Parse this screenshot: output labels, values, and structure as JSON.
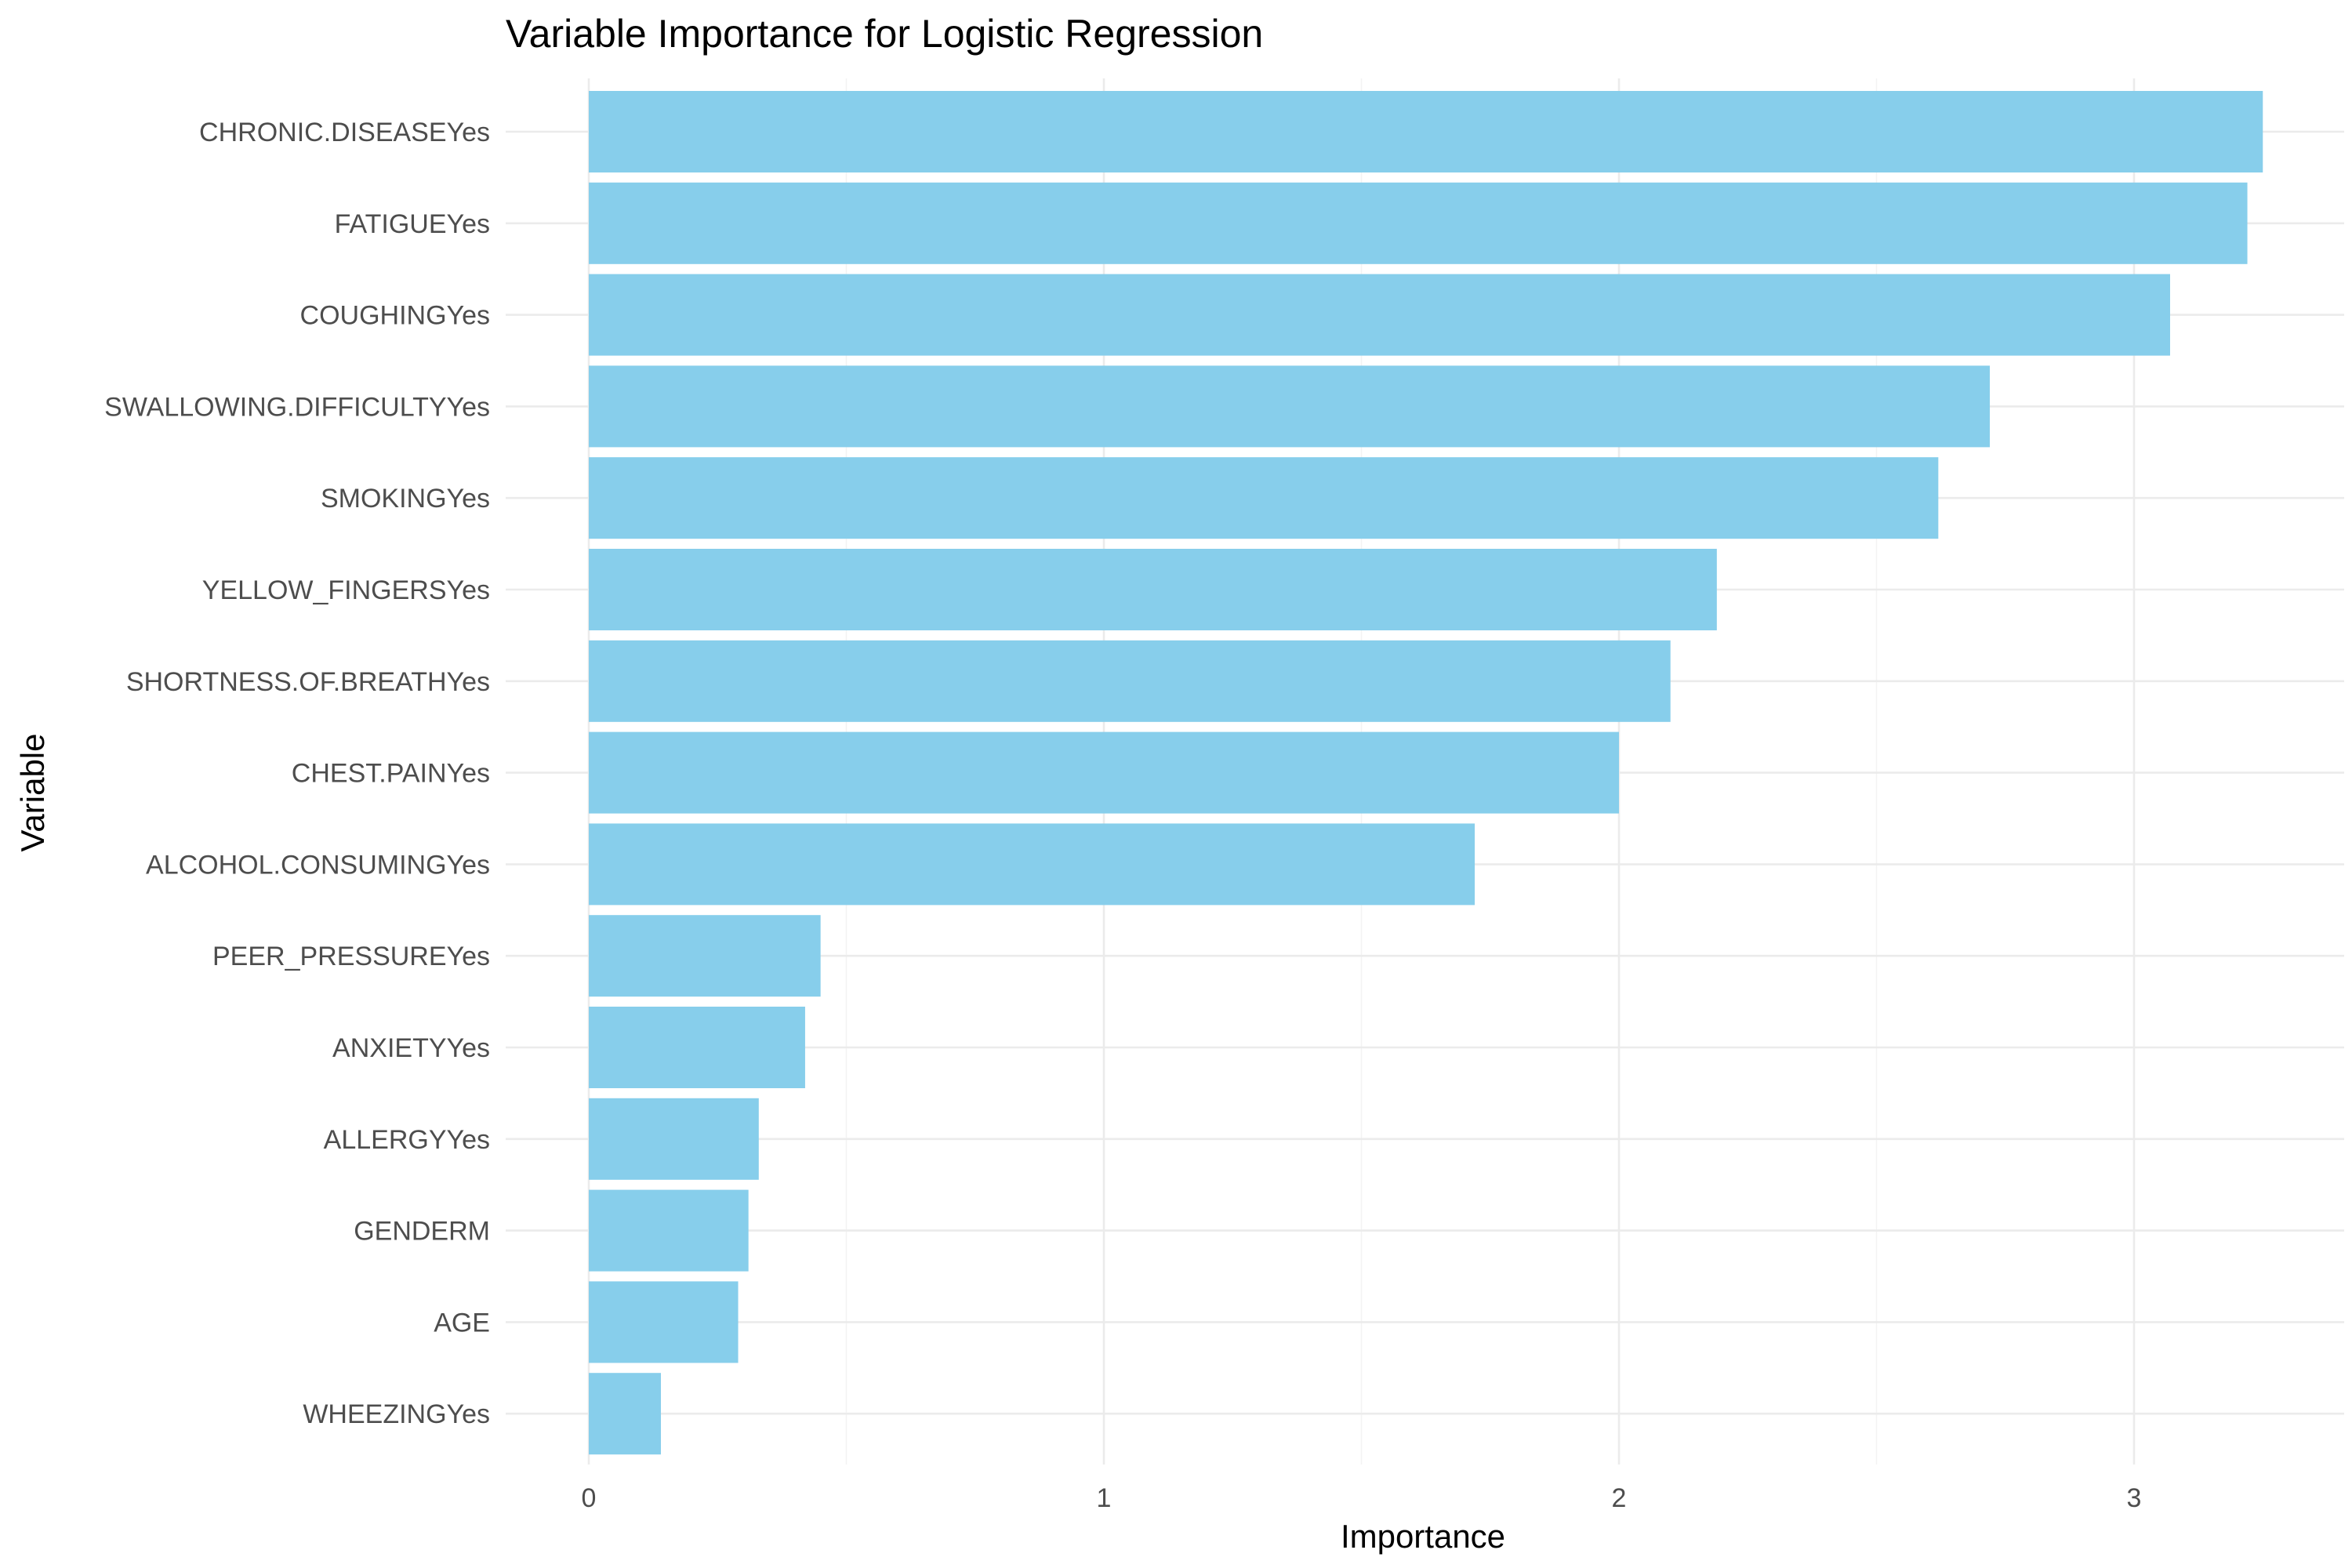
{
  "chart_data": {
    "type": "bar",
    "orientation": "horizontal",
    "title": "Variable Importance for Logistic Regression",
    "xlabel": "Importance",
    "ylabel": "Variable",
    "categories": [
      "CHRONIC.DISEASEYes",
      "FATIGUEYes",
      "COUGHINGYes",
      "SWALLOWING.DIFFICULTYYes",
      "SMOKINGYes",
      "YELLOW_FINGERSYes",
      "SHORTNESS.OF.BREATHYes",
      "CHEST.PAINYes",
      "ALCOHOL.CONSUMINGYes",
      "PEER_PRESSUREYes",
      "ANXIETYYes",
      "ALLERGYYes",
      "GENDERM",
      "AGE",
      "WHEEZINGYes"
    ],
    "values": [
      3.25,
      3.22,
      3.07,
      2.72,
      2.62,
      2.19,
      2.1,
      2.0,
      1.72,
      0.45,
      0.42,
      0.33,
      0.31,
      0.29,
      0.14
    ],
    "xlim": [
      -0.16,
      3.41
    ],
    "xticks": [
      0,
      1,
      2,
      3
    ],
    "bar_color": "#87ceeb",
    "grid": true,
    "legend": "none"
  }
}
